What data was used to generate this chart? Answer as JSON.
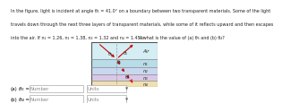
{
  "title_lines": [
    "In the figure, light is incident at angle θ₁ = 41.0° on a boundary between two transparent materials. Some of the light",
    "travels down through the next three layers of transparent materials, while some of it reflects upward and then escapes",
    "into the air. If n₁ = 1.26, n₂ = 1.38, n₃ = 1.32 and n₄ = 1.45, what is the value of (a) θ₅ and (b) θ₄?"
  ],
  "layer_colors": [
    "#d4eef4",
    "#b8dce8",
    "#c8d8ef",
    "#d8c8e8",
    "#f0e0b0"
  ],
  "layer_labels": [
    "Air",
    "n₁",
    "n₂",
    "n₃",
    "n₄"
  ],
  "arrow_color": "#cc0000",
  "dashed_color": "#999999",
  "bg_color": "#ffffff",
  "text_color": "#222222",
  "border_color": "#555555"
}
